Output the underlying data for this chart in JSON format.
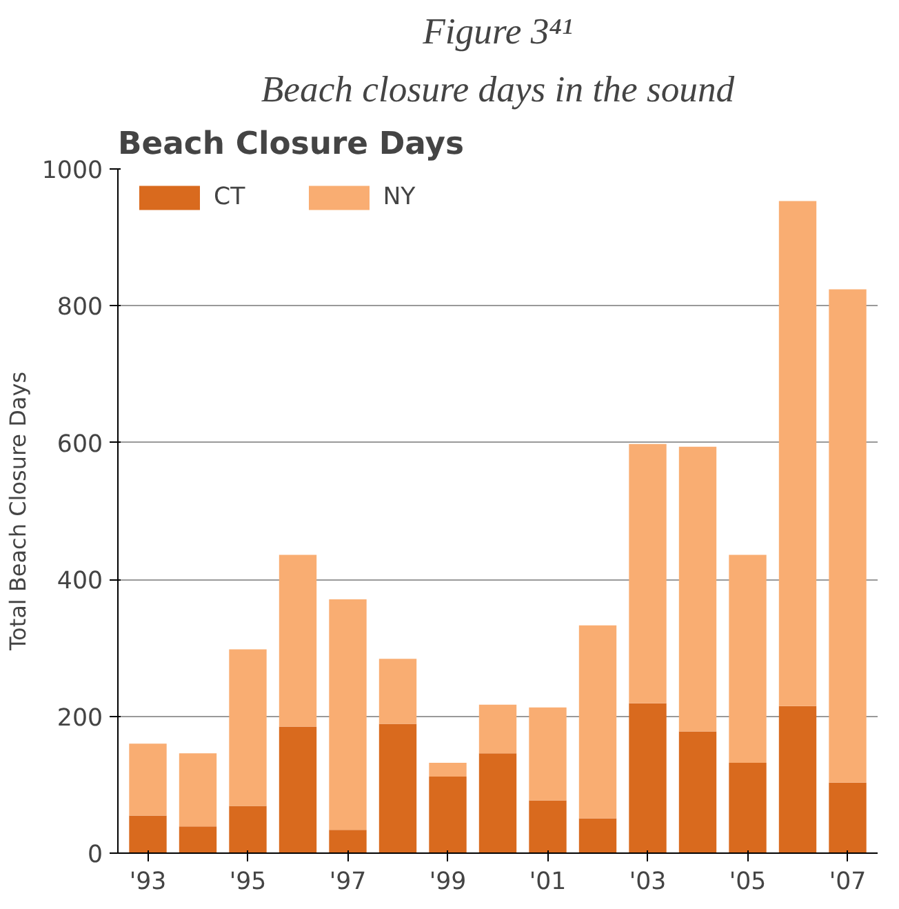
{
  "chart_data": {
    "type": "bar",
    "title": "Figure 3⁴¹",
    "subtitle": "Beach closure days in the sound",
    "annotations": [
      "Beach Closure Days"
    ],
    "ylabel": "Total Beach Closure Days",
    "categories": [
      "'93",
      null,
      "'95",
      null,
      "'97",
      null,
      "'99",
      null,
      "'01",
      null,
      "'03",
      null,
      "'05",
      null,
      "'07"
    ],
    "stacked": true,
    "series": [
      {
        "name": "CT",
        "color": "#d96a1e",
        "values": [
          55,
          39,
          69,
          185,
          34,
          189,
          112,
          146,
          77,
          51,
          219,
          178,
          132,
          215,
          103
        ]
      },
      {
        "name": "NY",
        "color": "#f9ad72",
        "values": [
          105,
          107,
          229,
          251,
          337,
          95,
          20,
          71,
          136,
          282,
          379,
          416,
          304,
          738,
          721
        ]
      }
    ],
    "ylim": [
      0,
      1000
    ],
    "yticks": [
      0,
      200,
      400,
      600,
      800,
      1000
    ],
    "grid": "y",
    "legend": "top left"
  }
}
